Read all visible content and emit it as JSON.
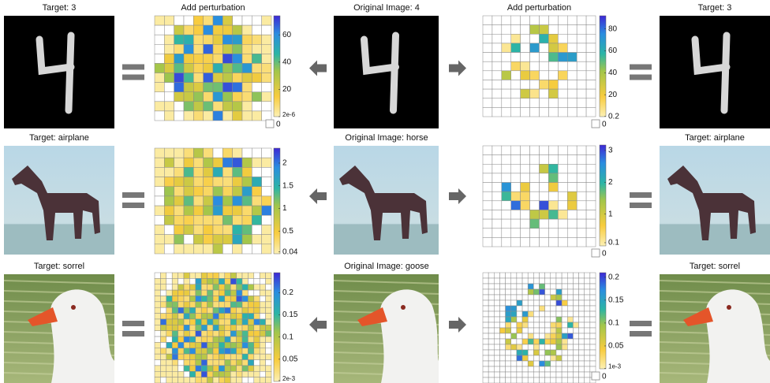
{
  "rows": [
    {
      "target_left": "Target: 3",
      "perturbation_left": {
        "title": "Add perturbation",
        "colorbar": {
          "range": [
            0,
            74
          ],
          "ticks": [
            {
              "value": 2e-06,
              "label": "2e-6"
            },
            20,
            40,
            60
          ],
          "zero_label": "0"
        }
      },
      "original": "Original Image: 4",
      "perturbation_right": {
        "title": "Add perturbation",
        "colorbar": {
          "range": [
            0,
            92
          ],
          "ticks": [
            0.2,
            20,
            40,
            60,
            80
          ],
          "zero_label": "0"
        }
      },
      "target_right": "Target: 3"
    },
    {
      "target_left": "Target: airplane",
      "perturbation_left": {
        "colorbar": {
          "range": [
            0,
            2.33
          ],
          "ticks": [
            0.04,
            0.5,
            1,
            1.5,
            2
          ]
        }
      },
      "original": "Original Image: horse",
      "perturbation_right": {
        "colorbar": {
          "range": [
            0,
            3.17
          ],
          "ticks": [
            0.1,
            1,
            2,
            3
          ],
          "zero_label": "0"
        }
      },
      "target_right": "Target: airplane"
    },
    {
      "target_left": "Target: sorrel",
      "perturbation_left": {
        "colorbar": {
          "range": [
            0,
            0.245
          ],
          "ticks": [
            {
              "value": 0.002,
              "label": "2e-3"
            },
            0.05,
            0.1,
            0.15,
            0.2
          ]
        }
      },
      "original": "Original Image: goose",
      "perturbation_right": {
        "colorbar": {
          "range": [
            0,
            0.21
          ],
          "ticks": [
            {
              "value": 0.001,
              "label": "1e-3"
            },
            0.05,
            0.1,
            0.15,
            0.2
          ],
          "zero_label": "0"
        }
      },
      "target_right": "Target: sorrel"
    }
  ]
}
